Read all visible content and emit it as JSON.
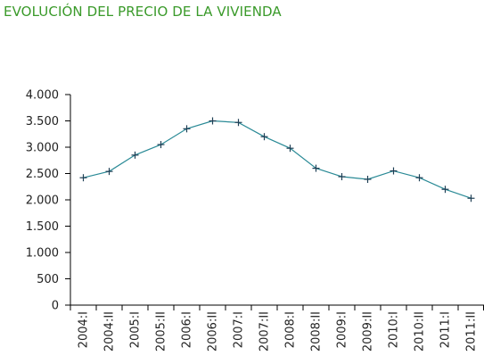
{
  "title": "EVOLUCIÓN DEL PRECIO DE LA VIVIENDA",
  "colors": {
    "title": "#3a9a2a",
    "series": "#2a8a96",
    "axis": "#000000"
  },
  "chart_data": {
    "type": "line",
    "title": "EVOLUCIÓN DEL PRECIO DE LA VIVIENDA",
    "xlabel": "",
    "ylabel": "",
    "ylim": [
      0,
      4000
    ],
    "yticks": [
      0,
      500,
      1000,
      1500,
      2000,
      2500,
      3000,
      3500,
      4000
    ],
    "ytick_labels": [
      "0",
      "500",
      "1.000",
      "1.500",
      "2.000",
      "2.500",
      "3.000",
      "3.500",
      "4.000"
    ],
    "grid": false,
    "legend": "none",
    "categories": [
      "2004:I",
      "2004:II",
      "2005:I",
      "2005:II",
      "2006:I",
      "2006:II",
      "2007:I",
      "2007:II",
      "2008:I",
      "2008:II",
      "2009:I",
      "2009:II",
      "2010:I",
      "2010:II",
      "2011:I",
      "2011:II"
    ],
    "series": [
      {
        "marker": "plus",
        "values": [
          2420,
          2540,
          2850,
          3050,
          3350,
          3500,
          3470,
          3200,
          2980,
          2600,
          2440,
          2390,
          2550,
          2420,
          2200,
          2030
        ]
      }
    ]
  }
}
